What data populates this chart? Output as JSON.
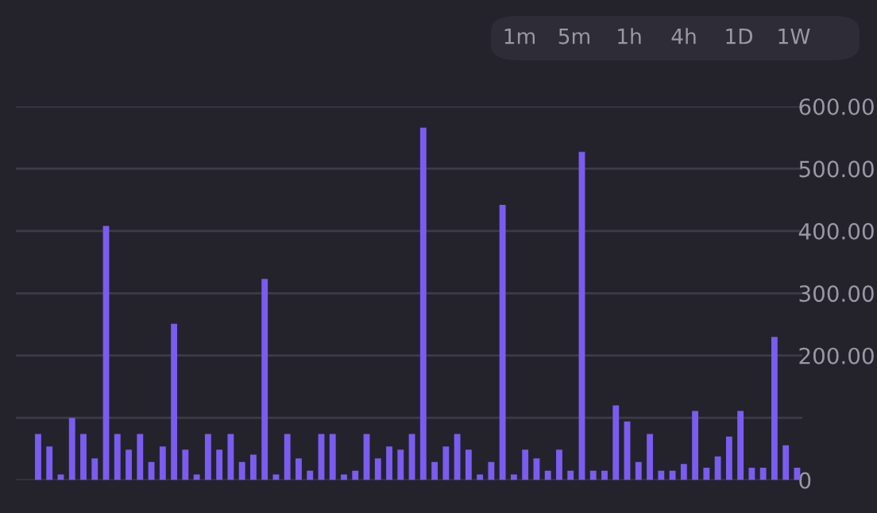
{
  "chart_data": {
    "type": "bar",
    "categories": [
      null,
      null,
      null,
      null,
      null,
      null,
      null,
      null,
      null,
      null,
      null,
      null,
      null,
      null,
      null,
      null,
      null,
      null,
      null,
      null,
      null,
      null,
      null,
      null,
      null,
      null,
      null,
      null,
      null,
      null,
      null,
      null,
      null,
      null,
      null,
      null,
      null,
      null,
      null,
      null,
      null,
      null,
      null,
      null,
      null,
      null,
      null,
      null,
      null,
      null,
      null,
      null,
      null,
      null,
      null,
      null,
      null,
      null,
      null,
      null,
      null,
      null,
      null,
      null,
      null,
      null,
      null,
      null
    ],
    "values": [
      74,
      54,
      9,
      100,
      74,
      35,
      408,
      74,
      49,
      74,
      29,
      54,
      251,
      49,
      9,
      74,
      49,
      74,
      29,
      41,
      323,
      9,
      74,
      35,
      15,
      74,
      74,
      9,
      15,
      74,
      35,
      54,
      49,
      74,
      566,
      29,
      54,
      74,
      49,
      9,
      29,
      442,
      9,
      49,
      35,
      15,
      49,
      15,
      527,
      15,
      15,
      120,
      94,
      29,
      74,
      15,
      15,
      26,
      111,
      20,
      38,
      70,
      111,
      20,
      20,
      230,
      56,
      20
    ],
    "color": "#7b5cf0",
    "ylim": [
      0,
      600
    ],
    "yticks": [
      0,
      {
        "value": 100,
        "label": null
      },
      {
        "value": 200,
        "label": "200.00"
      },
      {
        "value": 300,
        "label": "300.00"
      },
      {
        "value": 400,
        "label": "400.00"
      },
      {
        "value": 500,
        "label": "500.00"
      },
      {
        "value": 600,
        "label": "600.00"
      }
    ],
    "grid": "y",
    "annotations": [
      "1m",
      "5m",
      "1h",
      "4h",
      "1D",
      "1W"
    ]
  }
}
